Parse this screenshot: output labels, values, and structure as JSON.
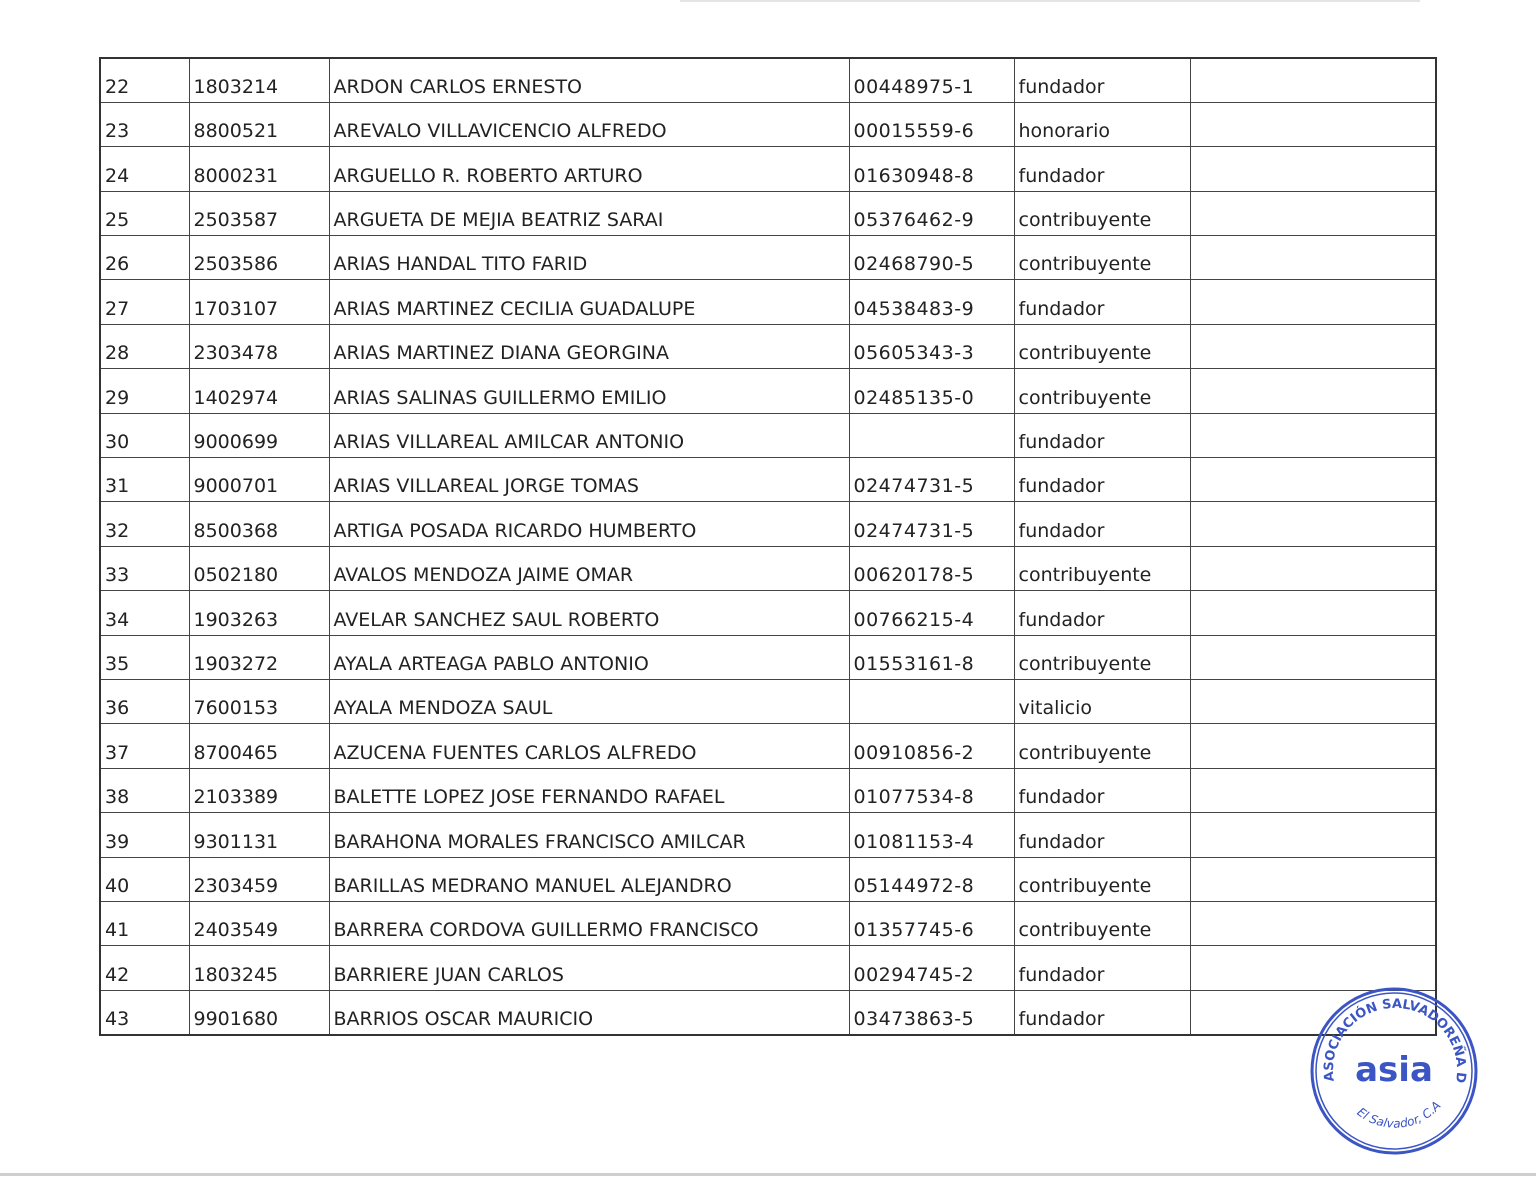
{
  "table": {
    "rows": [
      [
        "22",
        "1803214",
        "ARDON CARLOS ERNESTO",
        "00448975-1",
        "fundador",
        ""
      ],
      [
        "23",
        "8800521",
        "AREVALO VILLAVICENCIO ALFREDO",
        "00015559-6",
        "honorario",
        ""
      ],
      [
        "24",
        "8000231",
        "ARGUELLO R. ROBERTO ARTURO",
        "01630948-8",
        "fundador",
        ""
      ],
      [
        "25",
        "2503587",
        "ARGUETA DE MEJIA BEATRIZ SARAI",
        "05376462-9",
        "contribuyente",
        ""
      ],
      [
        "26",
        "2503586",
        "ARIAS HANDAL TITO FARID",
        "02468790-5",
        "contribuyente",
        ""
      ],
      [
        "27",
        "1703107",
        "ARIAS MARTINEZ CECILIA GUADALUPE",
        "04538483-9",
        "fundador",
        ""
      ],
      [
        "28",
        "2303478",
        "ARIAS MARTINEZ DIANA GEORGINA",
        "05605343-3",
        "contribuyente",
        ""
      ],
      [
        "29",
        "1402974",
        "ARIAS SALINAS GUILLERMO EMILIO",
        "02485135-0",
        "contribuyente",
        ""
      ],
      [
        "30",
        "9000699",
        "ARIAS VILLAREAL AMILCAR ANTONIO",
        "",
        "fundador",
        ""
      ],
      [
        "31",
        "9000701",
        "ARIAS VILLAREAL JORGE TOMAS",
        "02474731-5",
        "fundador",
        ""
      ],
      [
        "32",
        "8500368",
        "ARTIGA POSADA RICARDO HUMBERTO",
        "02474731-5",
        "fundador",
        ""
      ],
      [
        "33",
        "0502180",
        "AVALOS MENDOZA JAIME OMAR",
        "00620178-5",
        "contribuyente",
        ""
      ],
      [
        "34",
        "1903263",
        "AVELAR SANCHEZ SAUL ROBERTO",
        "00766215-4",
        "fundador",
        ""
      ],
      [
        "35",
        "1903272",
        "AYALA ARTEAGA PABLO ANTONIO",
        "01553161-8",
        "contribuyente",
        ""
      ],
      [
        "36",
        "7600153",
        "AYALA MENDOZA SAUL",
        "",
        "vitalicio",
        ""
      ],
      [
        "37",
        "8700465",
        "AZUCENA FUENTES CARLOS ALFREDO",
        "00910856-2",
        "contribuyente",
        ""
      ],
      [
        "38",
        "2103389",
        "BALETTE LOPEZ JOSE FERNANDO RAFAEL",
        "01077534-8",
        "fundador",
        ""
      ],
      [
        "39",
        "9301131",
        "BARAHONA MORALES FRANCISCO AMILCAR",
        "01081153-4",
        "fundador",
        ""
      ],
      [
        "40",
        "2303459",
        "BARILLAS MEDRANO MANUEL ALEJANDRO",
        "05144972-8",
        "contribuyente",
        ""
      ],
      [
        "41",
        "2403549",
        "BARRERA CORDOVA GUILLERMO FRANCISCO",
        "01357745-6",
        "contribuyente",
        ""
      ],
      [
        "42",
        "1803245",
        "BARRIERE JUAN CARLOS",
        "00294745-2",
        "fundador",
        ""
      ],
      [
        "43",
        "9901680",
        "BARRIOS OSCAR MAURICIO",
        "03473863-5",
        "fundador",
        ""
      ]
    ]
  },
  "stamp": {
    "ring_text": "ASOCIACIÓN SALVADOREÑA DE INGENIEROS Y ARQUITECTOS",
    "center_text": "asia",
    "bottom_text": "El Salvador, C.A.",
    "color": "#3b55c4"
  }
}
